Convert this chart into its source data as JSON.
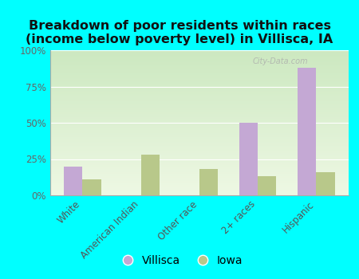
{
  "title": "Breakdown of poor residents within races\n(income below poverty level) in Villisca, IA",
  "categories": [
    "White",
    "American Indian",
    "Other race",
    "2+ races",
    "Hispanic"
  ],
  "villisca_values": [
    20,
    0,
    0,
    50,
    88
  ],
  "iowa_values": [
    11,
    28,
    18,
    13,
    16
  ],
  "villisca_color": "#c4a8d4",
  "iowa_color": "#b8c88a",
  "ylim": [
    0,
    100
  ],
  "yticks": [
    0,
    25,
    50,
    75,
    100
  ],
  "ytick_labels": [
    "0%",
    "25%",
    "50%",
    "75%",
    "100%"
  ],
  "bg_top_color": "#d8eecc",
  "bg_bottom_color": "#eef8e4",
  "bar_width": 0.32,
  "title_fontsize": 11.5,
  "tick_fontsize": 8.5,
  "watermark": "City-Data.com",
  "outer_bg": "#00ffff",
  "grid_color": "#ccddbb",
  "spine_color": "#aaaaaa"
}
